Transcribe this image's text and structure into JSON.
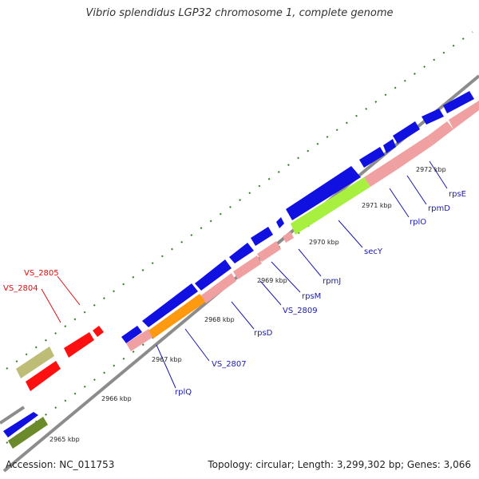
{
  "title": "Vibrio splendidus LGP32 chromosome 1, complete genome",
  "footer": {
    "accession": "Accession: NC_011753",
    "info": "Topology: circular; Length: 3,299,302 bp; Genes: 3,066"
  },
  "colors": {
    "backbone": "#8c8c8c",
    "tick": "#2e7d1f",
    "forward_cds": "#1010e0",
    "rrna_like": "#f0a0a0",
    "sec_y": "#a8f040",
    "orange": "#ff9a10",
    "red_gene": "#ff1010",
    "khaki": "#bdbd78",
    "olive": "#6b8a2a",
    "label_blue": "#1a1ab0",
    "label_red": "#e01010"
  },
  "ticks": [
    "2965 kbp",
    "2966 kbp",
    "2967 kbp",
    "2968 kbp",
    "2969 kbp",
    "2970 kbp",
    "2971 kbp",
    "2972 kbp"
  ],
  "genes": [
    {
      "name": "rplQ",
      "color": "label_blue"
    },
    {
      "name": "VS_2807",
      "color": "label_blue"
    },
    {
      "name": "rpsD",
      "color": "label_blue"
    },
    {
      "name": "VS_2809",
      "color": "label_blue"
    },
    {
      "name": "rpsM",
      "color": "label_blue"
    },
    {
      "name": "rpmJ",
      "color": "label_blue"
    },
    {
      "name": "secY",
      "color": "label_blue"
    },
    {
      "name": "rplO",
      "color": "label_blue"
    },
    {
      "name": "rpmD",
      "color": "label_blue"
    },
    {
      "name": "rpsE",
      "color": "label_blue"
    },
    {
      "name": "VS_2805",
      "color": "label_red"
    },
    {
      "name": "VS_2804",
      "color": "label_red"
    }
  ]
}
